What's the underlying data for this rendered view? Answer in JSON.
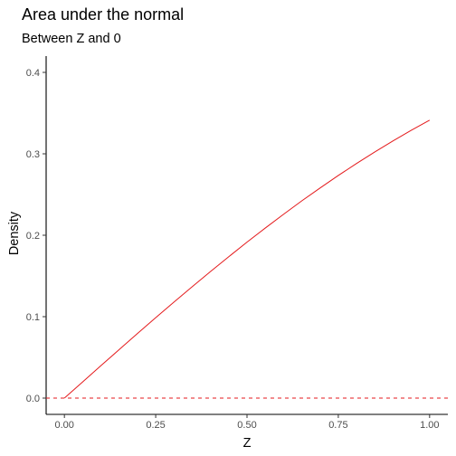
{
  "chart_data": {
    "type": "line",
    "title": "Area under the normal",
    "subtitle": "Between Z and 0",
    "xlabel": "Z",
    "ylabel": "Density",
    "xlim": [
      -0.05,
      1.05
    ],
    "ylim": [
      -0.02,
      0.42
    ],
    "x_ticks": [
      "0.00",
      "0.25",
      "0.50",
      "0.75",
      "1.00"
    ],
    "y_ticks": [
      "0.0",
      "0.1",
      "0.2",
      "0.3",
      "0.4"
    ],
    "grid": false,
    "series": [
      {
        "color": "#e41a1c",
        "x": [
          0.0,
          0.05,
          0.1,
          0.15,
          0.2,
          0.25,
          0.3,
          0.35,
          0.4,
          0.45,
          0.5,
          0.55,
          0.6,
          0.65,
          0.7,
          0.75,
          0.8,
          0.85,
          0.9,
          0.95,
          1.0
        ],
        "y": [
          0.0,
          0.0199,
          0.0398,
          0.0596,
          0.0793,
          0.0987,
          0.1179,
          0.1368,
          0.1554,
          0.1736,
          0.1915,
          0.2088,
          0.2257,
          0.2422,
          0.258,
          0.2734,
          0.2881,
          0.3023,
          0.3159,
          0.3289,
          0.3413
        ]
      }
    ],
    "reference_line": {
      "y": 0,
      "style": "dashed",
      "color": "#e41a1c"
    }
  }
}
